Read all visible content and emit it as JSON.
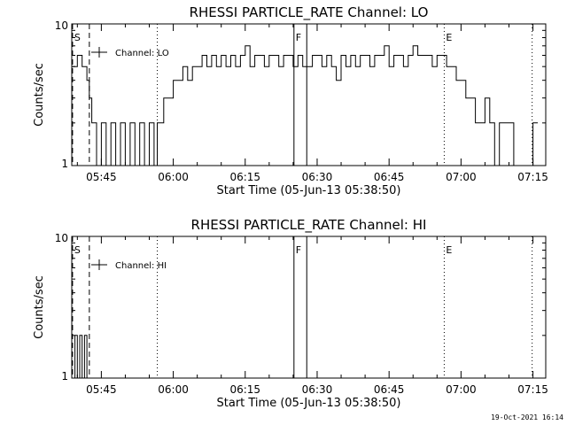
{
  "chart_data": [
    {
      "type": "line",
      "title": "RHESSI PARTICLE_RATE Channel: LO",
      "xlabel": "Start Time (05-Jun-13 05:38:50)",
      "ylabel": "Counts/sec",
      "yscale": "log",
      "ylim": [
        1,
        10
      ],
      "xlim": [
        "05:38:50",
        "07:17:40"
      ],
      "y_tick_labels": [
        "1",
        "10"
      ],
      "x_tick_labels": [
        "05:45",
        "06:00",
        "06:15",
        "06:30",
        "06:45",
        "07:00",
        "07:15"
      ],
      "legend": {
        "entry": "Channel: LO",
        "placement": "top-left"
      },
      "grid": false,
      "markers": [
        {
          "label": "S",
          "time": "05:39:00",
          "style": "dashed"
        },
        {
          "label": "",
          "time": "05:42:30",
          "style": "dashed"
        },
        {
          "label": "",
          "time": "05:56:40",
          "style": "dotted"
        },
        {
          "label": "F",
          "time": "06:25:10",
          "style": "solid"
        },
        {
          "label": "",
          "time": "06:27:50",
          "style": "solid"
        },
        {
          "label": "E",
          "time": "06:56:30",
          "style": "dotted"
        },
        {
          "label": "",
          "time": "07:14:50",
          "style": "dotted"
        }
      ],
      "series": [
        {
          "name": "Channel: LO",
          "x": [
            "05:39:00",
            "05:40:00",
            "05:41:00",
            "05:42:00",
            "05:42:30",
            "05:43:00",
            "05:44:00",
            "05:45:00",
            "05:46:00",
            "05:47:00",
            "05:48:00",
            "05:49:00",
            "05:50:00",
            "05:51:00",
            "05:52:00",
            "05:53:00",
            "05:54:00",
            "05:55:00",
            "05:56:00",
            "05:56:40",
            "05:57:00",
            "05:58:00",
            "05:59:00",
            "06:00:00",
            "06:01:00",
            "06:02:00",
            "06:03:00",
            "06:04:00",
            "06:05:00",
            "06:06:00",
            "06:07:00",
            "06:08:00",
            "06:09:00",
            "06:10:00",
            "06:11:00",
            "06:12:00",
            "06:13:00",
            "06:14:00",
            "06:15:00",
            "06:16:00",
            "06:17:00",
            "06:18:00",
            "06:19:00",
            "06:20:00",
            "06:21:00",
            "06:22:00",
            "06:23:00",
            "06:24:00",
            "06:25:00",
            "06:26:00",
            "06:27:00",
            "06:28:00",
            "06:29:00",
            "06:30:00",
            "06:31:00",
            "06:32:00",
            "06:33:00",
            "06:34:00",
            "06:35:00",
            "06:36:00",
            "06:37:00",
            "06:38:00",
            "06:39:00",
            "06:40:00",
            "06:41:00",
            "06:42:00",
            "06:43:00",
            "06:44:00",
            "06:45:00",
            "06:46:00",
            "06:47:00",
            "06:48:00",
            "06:49:00",
            "06:50:00",
            "06:51:00",
            "06:52:00",
            "06:53:00",
            "06:54:00",
            "06:55:00",
            "06:56:00",
            "06:57:00",
            "06:58:00",
            "06:59:00",
            "07:00:00",
            "07:01:00",
            "07:02:00",
            "07:03:00",
            "07:04:00",
            "07:05:00",
            "07:06:00",
            "07:07:00",
            "07:08:00",
            "07:09:00",
            "07:10:00",
            "07:11:00",
            "07:12:00",
            "07:13:00",
            "07:14:00",
            "07:15:00"
          ],
          "values": [
            5,
            6,
            5,
            4,
            3,
            2,
            1,
            2,
            1,
            2,
            1,
            2,
            1,
            2,
            1,
            2,
            1,
            2,
            1,
            2,
            2,
            3,
            3,
            4,
            4,
            5,
            4,
            5,
            5,
            6,
            5,
            6,
            5,
            6,
            5,
            6,
            5,
            6,
            7,
            5,
            6,
            6,
            5,
            6,
            6,
            5,
            6,
            6,
            5,
            6,
            5,
            5,
            6,
            6,
            5,
            6,
            5,
            4,
            6,
            5,
            6,
            5,
            6,
            6,
            5,
            6,
            6,
            7,
            5,
            6,
            6,
            5,
            6,
            7,
            6,
            6,
            6,
            5,
            6,
            6,
            5,
            5,
            4,
            4,
            3,
            3,
            2,
            2,
            3,
            2,
            1,
            2,
            2,
            2,
            1,
            1,
            1,
            1,
            2
          ]
        }
      ]
    },
    {
      "type": "line",
      "title": "RHESSI PARTICLE_RATE Channel: HI",
      "xlabel": "Start Time (05-Jun-13 05:38:50)",
      "ylabel": "Counts/sec",
      "yscale": "log",
      "ylim": [
        1,
        10
      ],
      "xlim": [
        "05:38:50",
        "07:17:40"
      ],
      "y_tick_labels": [
        "1",
        "10"
      ],
      "x_tick_labels": [
        "05:45",
        "06:00",
        "06:15",
        "06:30",
        "06:45",
        "07:00",
        "07:15"
      ],
      "legend": {
        "entry": "Channel: HI",
        "placement": "top-left"
      },
      "grid": false,
      "markers": [
        {
          "label": "S",
          "time": "05:39:00",
          "style": "dashed"
        },
        {
          "label": "",
          "time": "05:42:30",
          "style": "dashed"
        },
        {
          "label": "",
          "time": "05:56:40",
          "style": "dotted"
        },
        {
          "label": "F",
          "time": "06:25:10",
          "style": "solid"
        },
        {
          "label": "",
          "time": "06:27:50",
          "style": "solid"
        },
        {
          "label": "E",
          "time": "06:56:30",
          "style": "dotted"
        },
        {
          "label": "",
          "time": "07:14:50",
          "style": "dotted"
        }
      ],
      "series": [
        {
          "name": "Channel: HI",
          "x": [
            "05:39:00",
            "05:39:30",
            "05:40:00",
            "05:40:30",
            "05:41:00",
            "05:41:30",
            "05:42:00"
          ],
          "values": [
            1,
            2,
            1,
            2,
            1,
            2,
            1
          ]
        }
      ]
    }
  ],
  "footer": {
    "timestamp": "19-Oct-2021 16:14"
  }
}
